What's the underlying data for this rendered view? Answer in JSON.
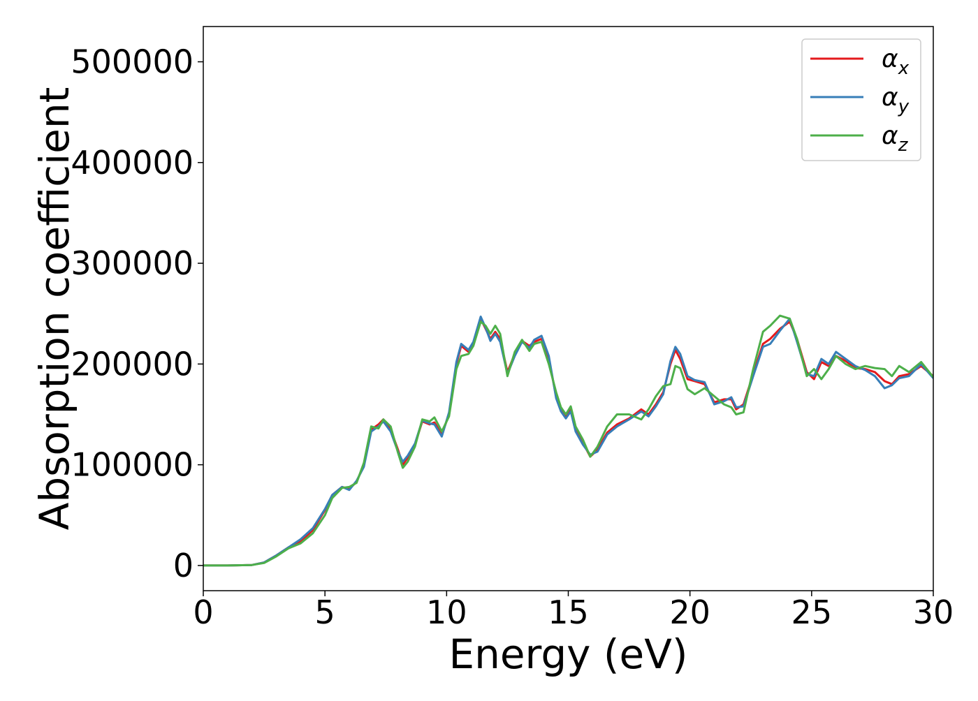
{
  "chart_data": {
    "type": "line",
    "title": "",
    "xlabel": "Energy (eV)",
    "ylabel": "Absorption coefficient",
    "xlim": [
      0,
      30
    ],
    "ylim": [
      -25000,
      535000
    ],
    "xticks": [
      0,
      5,
      10,
      15,
      20,
      25,
      30
    ],
    "yticks": [
      0,
      100000,
      200000,
      300000,
      400000,
      500000
    ],
    "grid": false,
    "legend_position": "top-right",
    "series": [
      {
        "name": "α",
        "subscript": "x",
        "color": "#e41a1c",
        "points": [
          [
            0,
            0
          ],
          [
            1,
            0
          ],
          [
            2,
            500
          ],
          [
            2.5,
            3000
          ],
          [
            3,
            10000
          ],
          [
            3.5,
            18000
          ],
          [
            4,
            24000
          ],
          [
            4.5,
            35000
          ],
          [
            5,
            55000
          ],
          [
            5.3,
            70000
          ],
          [
            5.7,
            78000
          ],
          [
            6,
            76000
          ],
          [
            6.3,
            83000
          ],
          [
            6.6,
            100000
          ],
          [
            6.9,
            135000
          ],
          [
            7.2,
            140000
          ],
          [
            7.4,
            145000
          ],
          [
            7.7,
            135000
          ],
          [
            8,
            115000
          ],
          [
            8.2,
            100000
          ],
          [
            8.4,
            107000
          ],
          [
            8.7,
            120000
          ],
          [
            9,
            143000
          ],
          [
            9.3,
            140000
          ],
          [
            9.5,
            142000
          ],
          [
            9.8,
            130000
          ],
          [
            10.1,
            150000
          ],
          [
            10.4,
            200000
          ],
          [
            10.6,
            218000
          ],
          [
            10.9,
            212000
          ],
          [
            11.1,
            220000
          ],
          [
            11.4,
            245000
          ],
          [
            11.6,
            235000
          ],
          [
            11.8,
            225000
          ],
          [
            12,
            232000
          ],
          [
            12.2,
            225000
          ],
          [
            12.5,
            192000
          ],
          [
            12.8,
            210000
          ],
          [
            13.1,
            223000
          ],
          [
            13.4,
            218000
          ],
          [
            13.6,
            222000
          ],
          [
            13.9,
            225000
          ],
          [
            14.2,
            205000
          ],
          [
            14.5,
            168000
          ],
          [
            14.7,
            155000
          ],
          [
            14.9,
            148000
          ],
          [
            15.1,
            155000
          ],
          [
            15.3,
            135000
          ],
          [
            15.6,
            122000
          ],
          [
            15.9,
            108000
          ],
          [
            16.2,
            115000
          ],
          [
            16.6,
            132000
          ],
          [
            17,
            140000
          ],
          [
            17.5,
            146000
          ],
          [
            18,
            155000
          ],
          [
            18.3,
            150000
          ],
          [
            18.6,
            160000
          ],
          [
            18.9,
            172000
          ],
          [
            19.2,
            200000
          ],
          [
            19.4,
            214000
          ],
          [
            19.6,
            205000
          ],
          [
            19.9,
            185000
          ],
          [
            20.2,
            183000
          ],
          [
            20.6,
            180000
          ],
          [
            21,
            162000
          ],
          [
            21.4,
            165000
          ],
          [
            21.7,
            165000
          ],
          [
            21.9,
            155000
          ],
          [
            22.2,
            160000
          ],
          [
            22.6,
            190000
          ],
          [
            23,
            220000
          ],
          [
            23.3,
            225000
          ],
          [
            23.7,
            235000
          ],
          [
            24.1,
            242000
          ],
          [
            24.4,
            225000
          ],
          [
            24.8,
            192000
          ],
          [
            25.1,
            185000
          ],
          [
            25.4,
            202000
          ],
          [
            25.7,
            198000
          ],
          [
            26,
            208000
          ],
          [
            26.4,
            203000
          ],
          [
            26.8,
            196000
          ],
          [
            27.2,
            195000
          ],
          [
            27.6,
            192000
          ],
          [
            28,
            183000
          ],
          [
            28.3,
            180000
          ],
          [
            28.6,
            188000
          ],
          [
            29,
            190000
          ],
          [
            29.5,
            198000
          ],
          [
            30,
            188000
          ]
        ]
      },
      {
        "name": "α",
        "subscript": "y",
        "color": "#377eb8",
        "points": [
          [
            0,
            0
          ],
          [
            1,
            0
          ],
          [
            2,
            500
          ],
          [
            2.5,
            3000
          ],
          [
            3,
            10000
          ],
          [
            3.5,
            18000
          ],
          [
            4,
            26000
          ],
          [
            4.5,
            37000
          ],
          [
            5,
            56000
          ],
          [
            5.3,
            70000
          ],
          [
            5.7,
            78000
          ],
          [
            6,
            75000
          ],
          [
            6.3,
            84000
          ],
          [
            6.6,
            98000
          ],
          [
            6.9,
            133000
          ],
          [
            7.2,
            138000
          ],
          [
            7.4,
            143000
          ],
          [
            7.7,
            133000
          ],
          [
            8,
            113000
          ],
          [
            8.2,
            103000
          ],
          [
            8.4,
            109000
          ],
          [
            8.7,
            121000
          ],
          [
            9,
            144000
          ],
          [
            9.3,
            141000
          ],
          [
            9.5,
            140000
          ],
          [
            9.8,
            128000
          ],
          [
            10.1,
            152000
          ],
          [
            10.4,
            202000
          ],
          [
            10.6,
            220000
          ],
          [
            10.9,
            214000
          ],
          [
            11.1,
            222000
          ],
          [
            11.4,
            247000
          ],
          [
            11.6,
            236000
          ],
          [
            11.8,
            223000
          ],
          [
            12,
            230000
          ],
          [
            12.2,
            222000
          ],
          [
            12.5,
            190000
          ],
          [
            12.8,
            208000
          ],
          [
            13.1,
            222000
          ],
          [
            13.4,
            216000
          ],
          [
            13.6,
            224000
          ],
          [
            13.9,
            228000
          ],
          [
            14.2,
            208000
          ],
          [
            14.5,
            166000
          ],
          [
            14.7,
            153000
          ],
          [
            14.9,
            146000
          ],
          [
            15.1,
            153000
          ],
          [
            15.3,
            133000
          ],
          [
            15.6,
            120000
          ],
          [
            15.9,
            110000
          ],
          [
            16.2,
            113000
          ],
          [
            16.6,
            130000
          ],
          [
            17,
            138000
          ],
          [
            17.5,
            145000
          ],
          [
            18,
            153000
          ],
          [
            18.3,
            148000
          ],
          [
            18.6,
            158000
          ],
          [
            18.9,
            170000
          ],
          [
            19.2,
            203000
          ],
          [
            19.4,
            217000
          ],
          [
            19.6,
            210000
          ],
          [
            19.9,
            188000
          ],
          [
            20.2,
            184000
          ],
          [
            20.6,
            182000
          ],
          [
            21,
            160000
          ],
          [
            21.4,
            163000
          ],
          [
            21.7,
            167000
          ],
          [
            21.9,
            157000
          ],
          [
            22.2,
            158000
          ],
          [
            22.6,
            188000
          ],
          [
            23,
            217000
          ],
          [
            23.3,
            220000
          ],
          [
            23.7,
            233000
          ],
          [
            24.1,
            245000
          ],
          [
            24.4,
            222000
          ],
          [
            24.8,
            190000
          ],
          [
            25.1,
            188000
          ],
          [
            25.4,
            205000
          ],
          [
            25.7,
            200000
          ],
          [
            26,
            212000
          ],
          [
            26.4,
            205000
          ],
          [
            26.8,
            198000
          ],
          [
            27.2,
            194000
          ],
          [
            27.6,
            188000
          ],
          [
            28,
            176000
          ],
          [
            28.3,
            179000
          ],
          [
            28.6,
            186000
          ],
          [
            29,
            188000
          ],
          [
            29.5,
            200000
          ],
          [
            30,
            186000
          ]
        ]
      },
      {
        "name": "α",
        "subscript": "z",
        "color": "#4daf4a",
        "points": [
          [
            0,
            0
          ],
          [
            1,
            0
          ],
          [
            2,
            500
          ],
          [
            2.5,
            2500
          ],
          [
            3,
            9000
          ],
          [
            3.5,
            17000
          ],
          [
            4,
            22000
          ],
          [
            4.5,
            32000
          ],
          [
            5,
            50000
          ],
          [
            5.3,
            67000
          ],
          [
            5.7,
            77000
          ],
          [
            6,
            78000
          ],
          [
            6.3,
            82000
          ],
          [
            6.6,
            102000
          ],
          [
            6.9,
            138000
          ],
          [
            7.2,
            136000
          ],
          [
            7.4,
            145000
          ],
          [
            7.7,
            138000
          ],
          [
            8,
            112000
          ],
          [
            8.2,
            97000
          ],
          [
            8.4,
            103000
          ],
          [
            8.7,
            118000
          ],
          [
            9,
            145000
          ],
          [
            9.3,
            143000
          ],
          [
            9.5,
            147000
          ],
          [
            9.8,
            133000
          ],
          [
            10.1,
            148000
          ],
          [
            10.4,
            195000
          ],
          [
            10.6,
            208000
          ],
          [
            10.9,
            210000
          ],
          [
            11.1,
            218000
          ],
          [
            11.4,
            242000
          ],
          [
            11.6,
            238000
          ],
          [
            11.8,
            230000
          ],
          [
            12,
            238000
          ],
          [
            12.2,
            230000
          ],
          [
            12.5,
            188000
          ],
          [
            12.8,
            212000
          ],
          [
            13.1,
            224000
          ],
          [
            13.4,
            213000
          ],
          [
            13.6,
            220000
          ],
          [
            13.9,
            222000
          ],
          [
            14.2,
            200000
          ],
          [
            14.5,
            172000
          ],
          [
            14.7,
            157000
          ],
          [
            14.9,
            150000
          ],
          [
            15.1,
            158000
          ],
          [
            15.3,
            138000
          ],
          [
            15.6,
            125000
          ],
          [
            15.9,
            108000
          ],
          [
            16.2,
            118000
          ],
          [
            16.6,
            138000
          ],
          [
            17,
            150000
          ],
          [
            17.5,
            150000
          ],
          [
            18,
            145000
          ],
          [
            18.3,
            155000
          ],
          [
            18.6,
            168000
          ],
          [
            18.9,
            178000
          ],
          [
            19.2,
            180000
          ],
          [
            19.4,
            198000
          ],
          [
            19.6,
            196000
          ],
          [
            19.9,
            175000
          ],
          [
            20.2,
            170000
          ],
          [
            20.6,
            176000
          ],
          [
            21,
            168000
          ],
          [
            21.4,
            160000
          ],
          [
            21.7,
            157000
          ],
          [
            21.9,
            150000
          ],
          [
            22.2,
            152000
          ],
          [
            22.6,
            195000
          ],
          [
            23,
            232000
          ],
          [
            23.3,
            238000
          ],
          [
            23.7,
            248000
          ],
          [
            24.1,
            245000
          ],
          [
            24.4,
            225000
          ],
          [
            24.8,
            188000
          ],
          [
            25.1,
            195000
          ],
          [
            25.4,
            185000
          ],
          [
            25.7,
            195000
          ],
          [
            26,
            208000
          ],
          [
            26.4,
            200000
          ],
          [
            26.8,
            195000
          ],
          [
            27.2,
            198000
          ],
          [
            27.6,
            196000
          ],
          [
            28,
            195000
          ],
          [
            28.3,
            188000
          ],
          [
            28.6,
            198000
          ],
          [
            29,
            192000
          ],
          [
            29.5,
            202000
          ],
          [
            30,
            187000
          ]
        ]
      }
    ]
  }
}
